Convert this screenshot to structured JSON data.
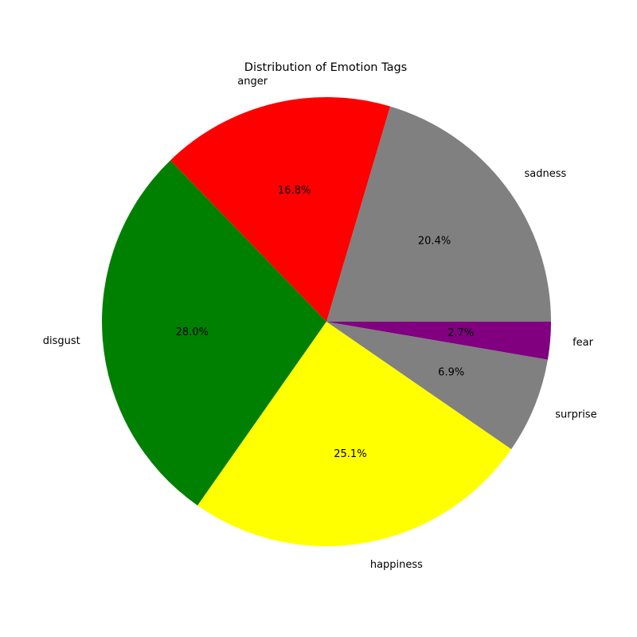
{
  "chart_data": {
    "type": "pie",
    "title": "Distribution of Emotion Tags",
    "start_angle_deg": 0,
    "direction": "counterclockwise",
    "slices": [
      {
        "label": "sadness",
        "value": 20.4,
        "pct_label": "20.4%",
        "color": "#808080"
      },
      {
        "label": "anger",
        "value": 16.8,
        "pct_label": "16.8%",
        "color": "#ff0000"
      },
      {
        "label": "disgust",
        "value": 28.0,
        "pct_label": "28.0%",
        "color": "#008000"
      },
      {
        "label": "happiness",
        "value": 25.1,
        "pct_label": "25.1%",
        "color": "#ffff00"
      },
      {
        "label": "surprise",
        "value": 6.9,
        "pct_label": "6.9%",
        "color": "#808080"
      },
      {
        "label": "fear",
        "value": 2.7,
        "pct_label": "2.7%",
        "color": "#800080"
      }
    ]
  }
}
